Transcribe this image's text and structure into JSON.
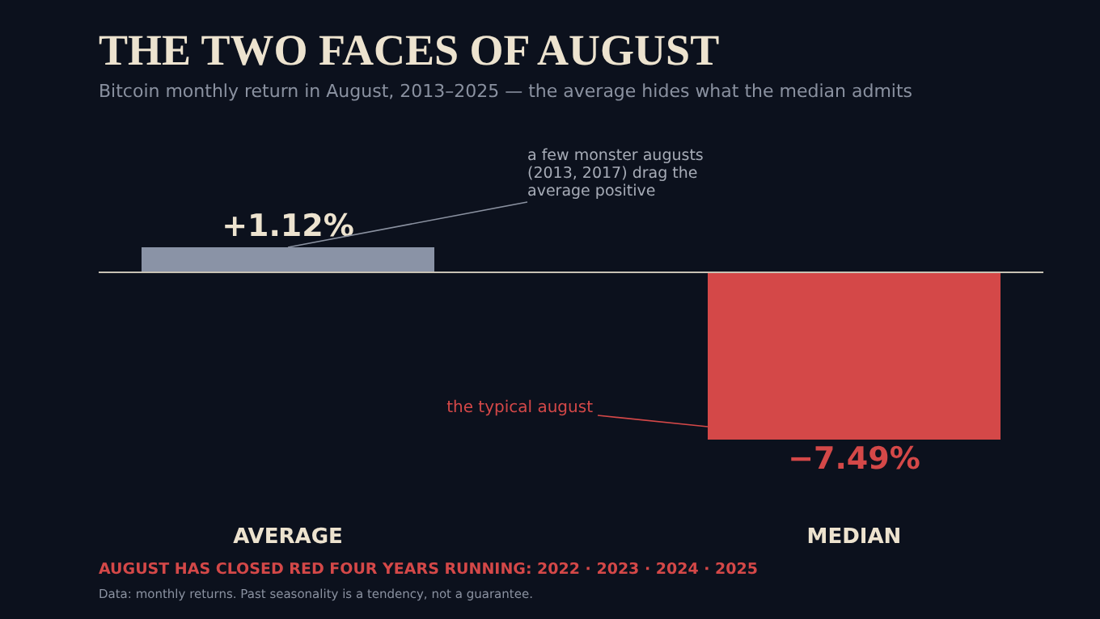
{
  "chart_data": {
    "type": "bar",
    "title": "THE TWO FACES OF AUGUST",
    "subtitle": "Bitcoin monthly return in August, 2013–2025 — the average hides what the median admits",
    "categories": [
      "AVERAGE",
      "MEDIAN"
    ],
    "values": [
      1.12,
      -7.49
    ],
    "colors": [
      "#8a93a6",
      "#d44848"
    ],
    "value_labels": [
      "+1.12%",
      "−7.49%"
    ],
    "annotations": [
      {
        "text": "a few monster augusts (2013, 2017) drag the average positive",
        "x": "AVERAGE",
        "y": 1.12
      },
      "the typical august",
      "AUGUST HAS CLOSED RED FOUR YEARS RUNNING: 2022 · 2023 · 2024 · 2025",
      "Data: monthly returns. Past seasonality is a tendency, not a guarantee."
    ]
  }
}
